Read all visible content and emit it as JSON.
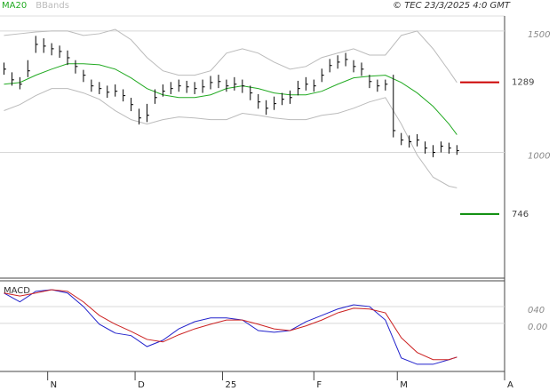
{
  "chart_data": [
    {
      "type": "ohlc",
      "credit": "© TEC 23/3/2025 4:0 GMT",
      "color": "#000000",
      "x": [
        0,
        2,
        4,
        6,
        8,
        10,
        12,
        14,
        16,
        18,
        20,
        22,
        24,
        26,
        28,
        30,
        32,
        34,
        36,
        38,
        40,
        42,
        44,
        46,
        48,
        50,
        52,
        54,
        56,
        58,
        60,
        62,
        64,
        66,
        68,
        70,
        72,
        74,
        76,
        78,
        80,
        82,
        84,
        86,
        88,
        90,
        92,
        94,
        96,
        98,
        100,
        102,
        104,
        106,
        108,
        110,
        112,
        114
      ],
      "high": [
        1370,
        1330,
        1310,
        1380,
        1480,
        1470,
        1450,
        1440,
        1420,
        1380,
        1340,
        1300,
        1290,
        1275,
        1280,
        1260,
        1225,
        1180,
        1200,
        1260,
        1280,
        1290,
        1300,
        1295,
        1290,
        1300,
        1315,
        1320,
        1300,
        1310,
        1300,
        1275,
        1240,
        1215,
        1230,
        1245,
        1255,
        1295,
        1310,
        1300,
        1345,
        1385,
        1400,
        1410,
        1380,
        1370,
        1320,
        1300,
        1300,
        1320,
        1080,
        1070,
        1075,
        1045,
        1030,
        1045,
        1040,
        1030
      ],
      "low": [
        1320,
        1275,
        1260,
        1310,
        1410,
        1410,
        1400,
        1390,
        1360,
        1325,
        1290,
        1250,
        1240,
        1225,
        1230,
        1210,
        1170,
        1115,
        1125,
        1200,
        1230,
        1240,
        1250,
        1245,
        1240,
        1245,
        1260,
        1265,
        1250,
        1255,
        1245,
        1215,
        1180,
        1155,
        1175,
        1195,
        1200,
        1235,
        1255,
        1250,
        1290,
        1330,
        1345,
        1355,
        1330,
        1315,
        1265,
        1250,
        1255,
        1062,
        1030,
        1020,
        1025,
        995,
        980,
        1000,
        995,
        990
      ],
      "close": [
        1343,
        1299,
        1281,
        1336,
        1445,
        1438,
        1427,
        1416,
        1390,
        1354,
        1318,
        1274,
        1263,
        1248,
        1252,
        1234,
        1197,
        1142,
        1153,
        1226,
        1252,
        1263,
        1274,
        1270,
        1263,
        1270,
        1288,
        1292,
        1274,
        1281,
        1274,
        1245,
        1208,
        1182,
        1201,
        1219,
        1226,
        1263,
        1281,
        1274,
        1318,
        1358,
        1372,
        1383,
        1354,
        1343,
        1292,
        1274,
        1281,
        1090,
        1051,
        1044,
        1051,
        1018,
        1000,
        1026,
        1018,
        1007
      ],
      "series": [
        {
          "name": "MA20",
          "color": "#22aa22",
          "x": [
            0,
            4,
            8,
            12,
            16,
            20,
            24,
            28,
            32,
            36,
            40,
            44,
            48,
            52,
            56,
            60,
            64,
            68,
            72,
            76,
            80,
            84,
            88,
            92,
            96,
            100,
            104,
            108,
            112,
            114
          ],
          "values": [
            1281,
            1288,
            1318,
            1343,
            1365,
            1365,
            1361,
            1343,
            1307,
            1263,
            1237,
            1226,
            1226,
            1237,
            1263,
            1274,
            1263,
            1245,
            1237,
            1237,
            1252,
            1281,
            1307,
            1314,
            1318,
            1288,
            1245,
            1190,
            1117,
            1073
          ]
        },
        {
          "name": "BBands",
          "color": "#bbbbbb",
          "x": [
            0,
            4,
            8,
            12,
            16,
            20,
            24,
            28,
            32,
            36,
            40,
            44,
            48,
            52,
            56,
            60,
            64,
            68,
            72,
            76,
            80,
            84,
            88,
            92,
            96,
            100,
            104,
            108,
            112,
            114
          ],
          "upper": [
            1482,
            1489,
            1496,
            1500,
            1500,
            1482,
            1489,
            1507,
            1464,
            1391,
            1336,
            1318,
            1318,
            1336,
            1409,
            1427,
            1409,
            1372,
            1343,
            1354,
            1391,
            1409,
            1427,
            1401,
            1401,
            1482,
            1500,
            1427,
            1336,
            1288
          ],
          "lower": [
            1172,
            1197,
            1234,
            1263,
            1263,
            1245,
            1219,
            1172,
            1135,
            1117,
            1135,
            1146,
            1142,
            1135,
            1135,
            1161,
            1153,
            1142,
            1135,
            1135,
            1153,
            1161,
            1182,
            1208,
            1226,
            1117,
            989,
            898,
            861,
            854
          ]
        }
      ],
      "levels": [
        {
          "value": 1289,
          "color": "#cc0000"
        },
        {
          "value": 746,
          "color": "#008800"
        }
      ],
      "ylim": [
        482,
        1562
      ],
      "yticks": [
        1000,
        1500
      ],
      "xlim": [
        -1,
        126
      ],
      "xticks": [
        {
          "value": 11,
          "label": "N"
        },
        {
          "value": 33,
          "label": "D"
        },
        {
          "value": 55,
          "label": "25"
        },
        {
          "value": 78,
          "label": "F"
        },
        {
          "value": 99,
          "label": "M"
        },
        {
          "value": 126,
          "label": "A"
        }
      ],
      "grid": true
    },
    {
      "type": "line",
      "title": "MACD",
      "x": [
        0,
        4,
        8,
        12,
        16,
        20,
        24,
        28,
        32,
        36,
        40,
        44,
        48,
        52,
        56,
        60,
        64,
        68,
        72,
        76,
        80,
        84,
        88,
        92,
        96,
        100,
        104,
        108,
        112,
        114
      ],
      "series": [
        {
          "color": "#2222cc",
          "values": [
            72,
            51,
            76,
            80,
            72,
            40,
            -2,
            -23,
            -29,
            -55,
            -40,
            -13,
            4,
            13,
            13,
            8,
            -17,
            -21,
            -17,
            4,
            19,
            34,
            44,
            40,
            8,
            -82,
            -97,
            -97,
            -86,
            -80
          ]
        },
        {
          "color": "#cc2222",
          "values": [
            72,
            65,
            72,
            80,
            76,
            51,
            19,
            -2,
            -19,
            -38,
            -44,
            -27,
            -13,
            -2,
            8,
            8,
            -2,
            -13,
            -17,
            -6,
            8,
            25,
            36,
            34,
            25,
            -34,
            -69,
            -86,
            -86,
            -80
          ]
        }
      ],
      "ylim": [
        -114,
        101
      ],
      "yticks": [
        {
          "value": 40,
          "label": "040"
        },
        {
          "value": 0,
          "label": "0.00"
        }
      ],
      "grid": true
    }
  ]
}
